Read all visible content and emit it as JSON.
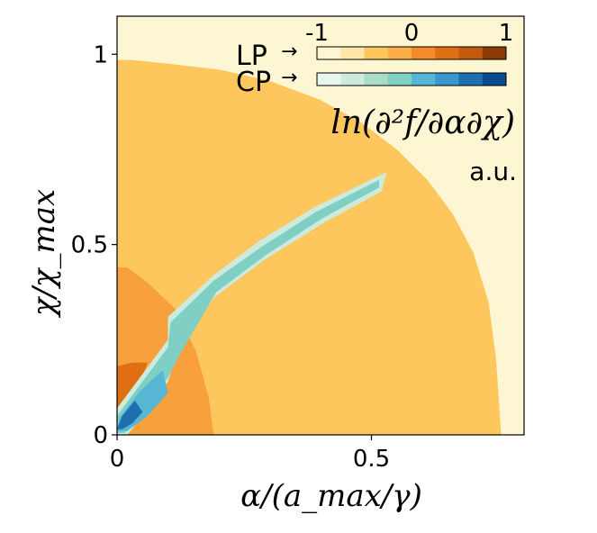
{
  "chart_data": {
    "type": "heatmap",
    "title": "",
    "xlabel": "α/(a_max/γ)",
    "ylabel": "χ/χ_max",
    "xlim": [
      0,
      0.8
    ],
    "ylim": [
      0,
      1.1
    ],
    "x_ticks": [
      {
        "value": 0,
        "label": "0"
      },
      {
        "value": 0.5,
        "label": "0.5"
      }
    ],
    "y_ticks": [
      {
        "value": 0,
        "label": "0"
      },
      {
        "value": 0.5,
        "label": "0.5"
      },
      {
        "value": 1,
        "label": "1"
      }
    ],
    "colorbar": {
      "quantity": "ln(∂²f/∂α∂χ)",
      "unit": "a.u.",
      "range": [
        -1,
        1
      ],
      "tick_labels": [
        "-1",
        "0",
        "1"
      ],
      "rows": [
        {
          "label": "LP",
          "arrow": "→",
          "colors": [
            "#fdf6d2",
            "#fde6a8",
            "#fdc75e",
            "#fcaf48",
            "#f38c28",
            "#e06f14",
            "#c45a0e",
            "#8b3a05"
          ]
        },
        {
          "label": "CP",
          "arrow": "→",
          "colors": [
            "#e8f6ee",
            "#cdebdc",
            "#a9ddc6",
            "#7fcfc4",
            "#56b6d4",
            "#3a97cd",
            "#1f6fb0",
            "#0b4b8f"
          ]
        }
      ]
    },
    "regions": [
      {
        "name": "background",
        "color": "#fdf6d2",
        "polygon": [
          [
            0,
            0
          ],
          [
            0.8,
            0
          ],
          [
            0.8,
            1.1
          ],
          [
            0,
            1.1
          ]
        ]
      },
      {
        "name": "main-orange",
        "color": "#fdc75e",
        "polygon": [
          [
            0,
            0
          ],
          [
            0.755,
            0
          ],
          [
            0.745,
            0.2
          ],
          [
            0.73,
            0.35
          ],
          [
            0.7,
            0.48
          ],
          [
            0.66,
            0.58
          ],
          [
            0.61,
            0.67
          ],
          [
            0.55,
            0.75
          ],
          [
            0.48,
            0.82
          ],
          [
            0.4,
            0.88
          ],
          [
            0.3,
            0.93
          ],
          [
            0.2,
            0.96
          ],
          [
            0.1,
            0.975
          ],
          [
            0.03,
            0.985
          ],
          [
            0,
            0.985
          ]
        ]
      },
      {
        "name": "dark-orange",
        "color": "#f7a03c",
        "polygon": [
          [
            0,
            0
          ],
          [
            0.19,
            0
          ],
          [
            0.18,
            0.1
          ],
          [
            0.155,
            0.22
          ],
          [
            0.115,
            0.33
          ],
          [
            0.06,
            0.4
          ],
          [
            0.02,
            0.44
          ],
          [
            0,
            0.44
          ]
        ]
      },
      {
        "name": "deep-orange",
        "color": "#e06f14",
        "polygon": [
          [
            0,
            0.03
          ],
          [
            0.04,
            0.12
          ],
          [
            0.06,
            0.19
          ],
          [
            0.03,
            0.19
          ],
          [
            0,
            0.18
          ]
        ]
      },
      {
        "name": "cp-outer",
        "color": "#cdebdc",
        "polygon": [
          [
            0,
            0
          ],
          [
            0,
            0.07
          ],
          [
            0.05,
            0.16
          ],
          [
            0.1,
            0.25
          ],
          [
            0.1,
            0.31
          ],
          [
            0.19,
            0.42
          ],
          [
            0.28,
            0.51
          ],
          [
            0.39,
            0.6
          ],
          [
            0.53,
            0.69
          ],
          [
            0.52,
            0.64
          ],
          [
            0.41,
            0.56
          ],
          [
            0.29,
            0.46
          ],
          [
            0.19,
            0.36
          ],
          [
            0.12,
            0.22
          ],
          [
            0.1,
            0.14
          ],
          [
            0.07,
            0.08
          ],
          [
            0.02,
            0
          ]
        ]
      },
      {
        "name": "cp-band",
        "color": "#7fcfc4",
        "polygon": [
          [
            0,
            0.005
          ],
          [
            0,
            0.05
          ],
          [
            0.05,
            0.14
          ],
          [
            0.1,
            0.23
          ],
          [
            0.105,
            0.295
          ],
          [
            0.19,
            0.405
          ],
          [
            0.285,
            0.495
          ],
          [
            0.39,
            0.585
          ],
          [
            0.515,
            0.67
          ],
          [
            0.515,
            0.65
          ],
          [
            0.405,
            0.57
          ],
          [
            0.29,
            0.47
          ],
          [
            0.195,
            0.375
          ],
          [
            0.125,
            0.215
          ],
          [
            0.1,
            0.15
          ],
          [
            0.06,
            0.08
          ],
          [
            0.015,
            0.005
          ]
        ]
      },
      {
        "name": "cp-mid",
        "color": "#56b6d4",
        "polygon": [
          [
            0,
            0.01
          ],
          [
            0.005,
            0.045
          ],
          [
            0.045,
            0.115
          ],
          [
            0.09,
            0.17
          ],
          [
            0.1,
            0.11
          ],
          [
            0.06,
            0.05
          ],
          [
            0.02,
            0.01
          ]
        ]
      },
      {
        "name": "cp-core",
        "color": "#1f6fb0",
        "polygon": [
          [
            0,
            0.015
          ],
          [
            0.01,
            0.05
          ],
          [
            0.035,
            0.09
          ],
          [
            0.05,
            0.06
          ],
          [
            0.03,
            0.03
          ],
          [
            0.01,
            0.015
          ]
        ]
      }
    ]
  }
}
